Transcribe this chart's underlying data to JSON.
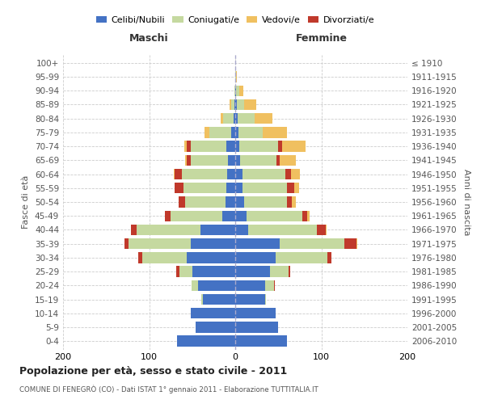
{
  "age_groups": [
    "0-4",
    "5-9",
    "10-14",
    "15-19",
    "20-24",
    "25-29",
    "30-34",
    "35-39",
    "40-44",
    "45-49",
    "50-54",
    "55-59",
    "60-64",
    "65-69",
    "70-74",
    "75-79",
    "80-84",
    "85-89",
    "90-94",
    "95-99",
    "100+"
  ],
  "birth_years": [
    "2006-2010",
    "2001-2005",
    "1996-2000",
    "1991-1995",
    "1986-1990",
    "1981-1985",
    "1976-1980",
    "1971-1975",
    "1966-1970",
    "1961-1965",
    "1956-1960",
    "1951-1955",
    "1946-1950",
    "1941-1945",
    "1936-1940",
    "1931-1935",
    "1926-1930",
    "1921-1925",
    "1916-1920",
    "1911-1915",
    "≤ 1910"
  ],
  "male": {
    "celibi": [
      68,
      46,
      52,
      38,
      43,
      50,
      56,
      52,
      40,
      15,
      11,
      10,
      9,
      8,
      10,
      5,
      2,
      1,
      0,
      0,
      0
    ],
    "coniugati": [
      0,
      0,
      0,
      1,
      8,
      15,
      52,
      72,
      75,
      60,
      47,
      50,
      53,
      44,
      42,
      25,
      12,
      4,
      1,
      0,
      0
    ],
    "vedovi": [
      0,
      0,
      0,
      0,
      0,
      0,
      0,
      0,
      0,
      0,
      0,
      0,
      1,
      2,
      3,
      6,
      3,
      2,
      0,
      0,
      0
    ],
    "divorziati": [
      0,
      0,
      0,
      0,
      0,
      4,
      5,
      5,
      6,
      7,
      8,
      10,
      8,
      4,
      4,
      0,
      0,
      0,
      0,
      0,
      0
    ]
  },
  "female": {
    "nubili": [
      60,
      50,
      47,
      35,
      35,
      40,
      47,
      52,
      15,
      13,
      10,
      8,
      8,
      6,
      5,
      4,
      3,
      2,
      1,
      0,
      0
    ],
    "coniugate": [
      0,
      0,
      0,
      1,
      10,
      22,
      60,
      75,
      80,
      65,
      50,
      52,
      50,
      42,
      45,
      28,
      20,
      8,
      4,
      1,
      0
    ],
    "vedove": [
      0,
      0,
      0,
      0,
      0,
      0,
      0,
      1,
      1,
      2,
      4,
      5,
      10,
      18,
      28,
      28,
      20,
      14,
      4,
      1,
      0
    ],
    "divorziate": [
      0,
      0,
      0,
      0,
      1,
      2,
      5,
      14,
      10,
      6,
      6,
      9,
      7,
      4,
      4,
      0,
      0,
      0,
      0,
      0,
      0
    ]
  },
  "colors": {
    "celibi": "#4472c4",
    "coniugati": "#c5d9a0",
    "vedovi": "#f0c060",
    "divorziati": "#c0392b"
  },
  "title": "Popolazione per età, sesso e stato civile - 2011",
  "subtitle": "COMUNE DI FENEGRÒ (CO) - Dati ISTAT 1° gennaio 2011 - Elaborazione TUTTITALIA.IT",
  "xlabel_left": "Maschi",
  "xlabel_right": "Femmine",
  "ylabel_left": "Fasce di età",
  "ylabel_right": "Anni di nascita",
  "xlim": 200,
  "legend_labels": [
    "Celibi/Nubili",
    "Coniugati/e",
    "Vedovi/e",
    "Divorziati/e"
  ],
  "bg_color": "#ffffff",
  "grid_color": "#cccccc"
}
